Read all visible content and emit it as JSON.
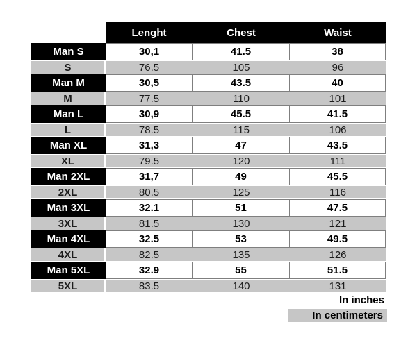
{
  "table": {
    "columns": [
      "Lenght",
      "Chest",
      "Waist"
    ],
    "rows": [
      {
        "label": "Man S",
        "unit": "in",
        "values": [
          "30,1",
          "41.5",
          "38"
        ]
      },
      {
        "label": "S",
        "unit": "cm",
        "values": [
          "76.5",
          "105",
          "96"
        ]
      },
      {
        "label": "Man M",
        "unit": "in",
        "values": [
          "30,5",
          "43.5",
          "40"
        ]
      },
      {
        "label": "M",
        "unit": "cm",
        "values": [
          "77.5",
          "110",
          "101"
        ]
      },
      {
        "label": "Man L",
        "unit": "in",
        "values": [
          "30,9",
          "45.5",
          "41.5"
        ]
      },
      {
        "label": "L",
        "unit": "cm",
        "values": [
          "78.5",
          "115",
          "106"
        ]
      },
      {
        "label": "Man XL",
        "unit": "in",
        "values": [
          "31,3",
          "47",
          "43.5"
        ]
      },
      {
        "label": "XL",
        "unit": "cm",
        "values": [
          "79.5",
          "120",
          "111"
        ]
      },
      {
        "label": "Man 2XL",
        "unit": "in",
        "values": [
          "31,7",
          "49",
          "45.5"
        ]
      },
      {
        "label": "2XL",
        "unit": "cm",
        "values": [
          "80.5",
          "125",
          "116"
        ]
      },
      {
        "label": "Man 3XL",
        "unit": "in",
        "values": [
          "32.1",
          "51",
          "47.5"
        ]
      },
      {
        "label": "3XL",
        "unit": "cm",
        "values": [
          "81.5",
          "130",
          "121"
        ]
      },
      {
        "label": "Man 4XL",
        "unit": "in",
        "values": [
          "32.5",
          "53",
          "49.5"
        ]
      },
      {
        "label": "4XL",
        "unit": "cm",
        "values": [
          "82.5",
          "135",
          "126"
        ]
      },
      {
        "label": "Man 5XL",
        "unit": "in",
        "values": [
          "32.9",
          "55",
          "51.5"
        ]
      },
      {
        "label": "5XL",
        "unit": "cm",
        "values": [
          "83.5",
          "140",
          "131"
        ]
      }
    ]
  },
  "legend": {
    "inches": "In inches",
    "centimeters": "In centimeters"
  },
  "colors": {
    "header_bg": "#000000",
    "header_text": "#ffffff",
    "cm_row_bg": "#c6c6c6",
    "cell_border": "#7f7f7f"
  }
}
